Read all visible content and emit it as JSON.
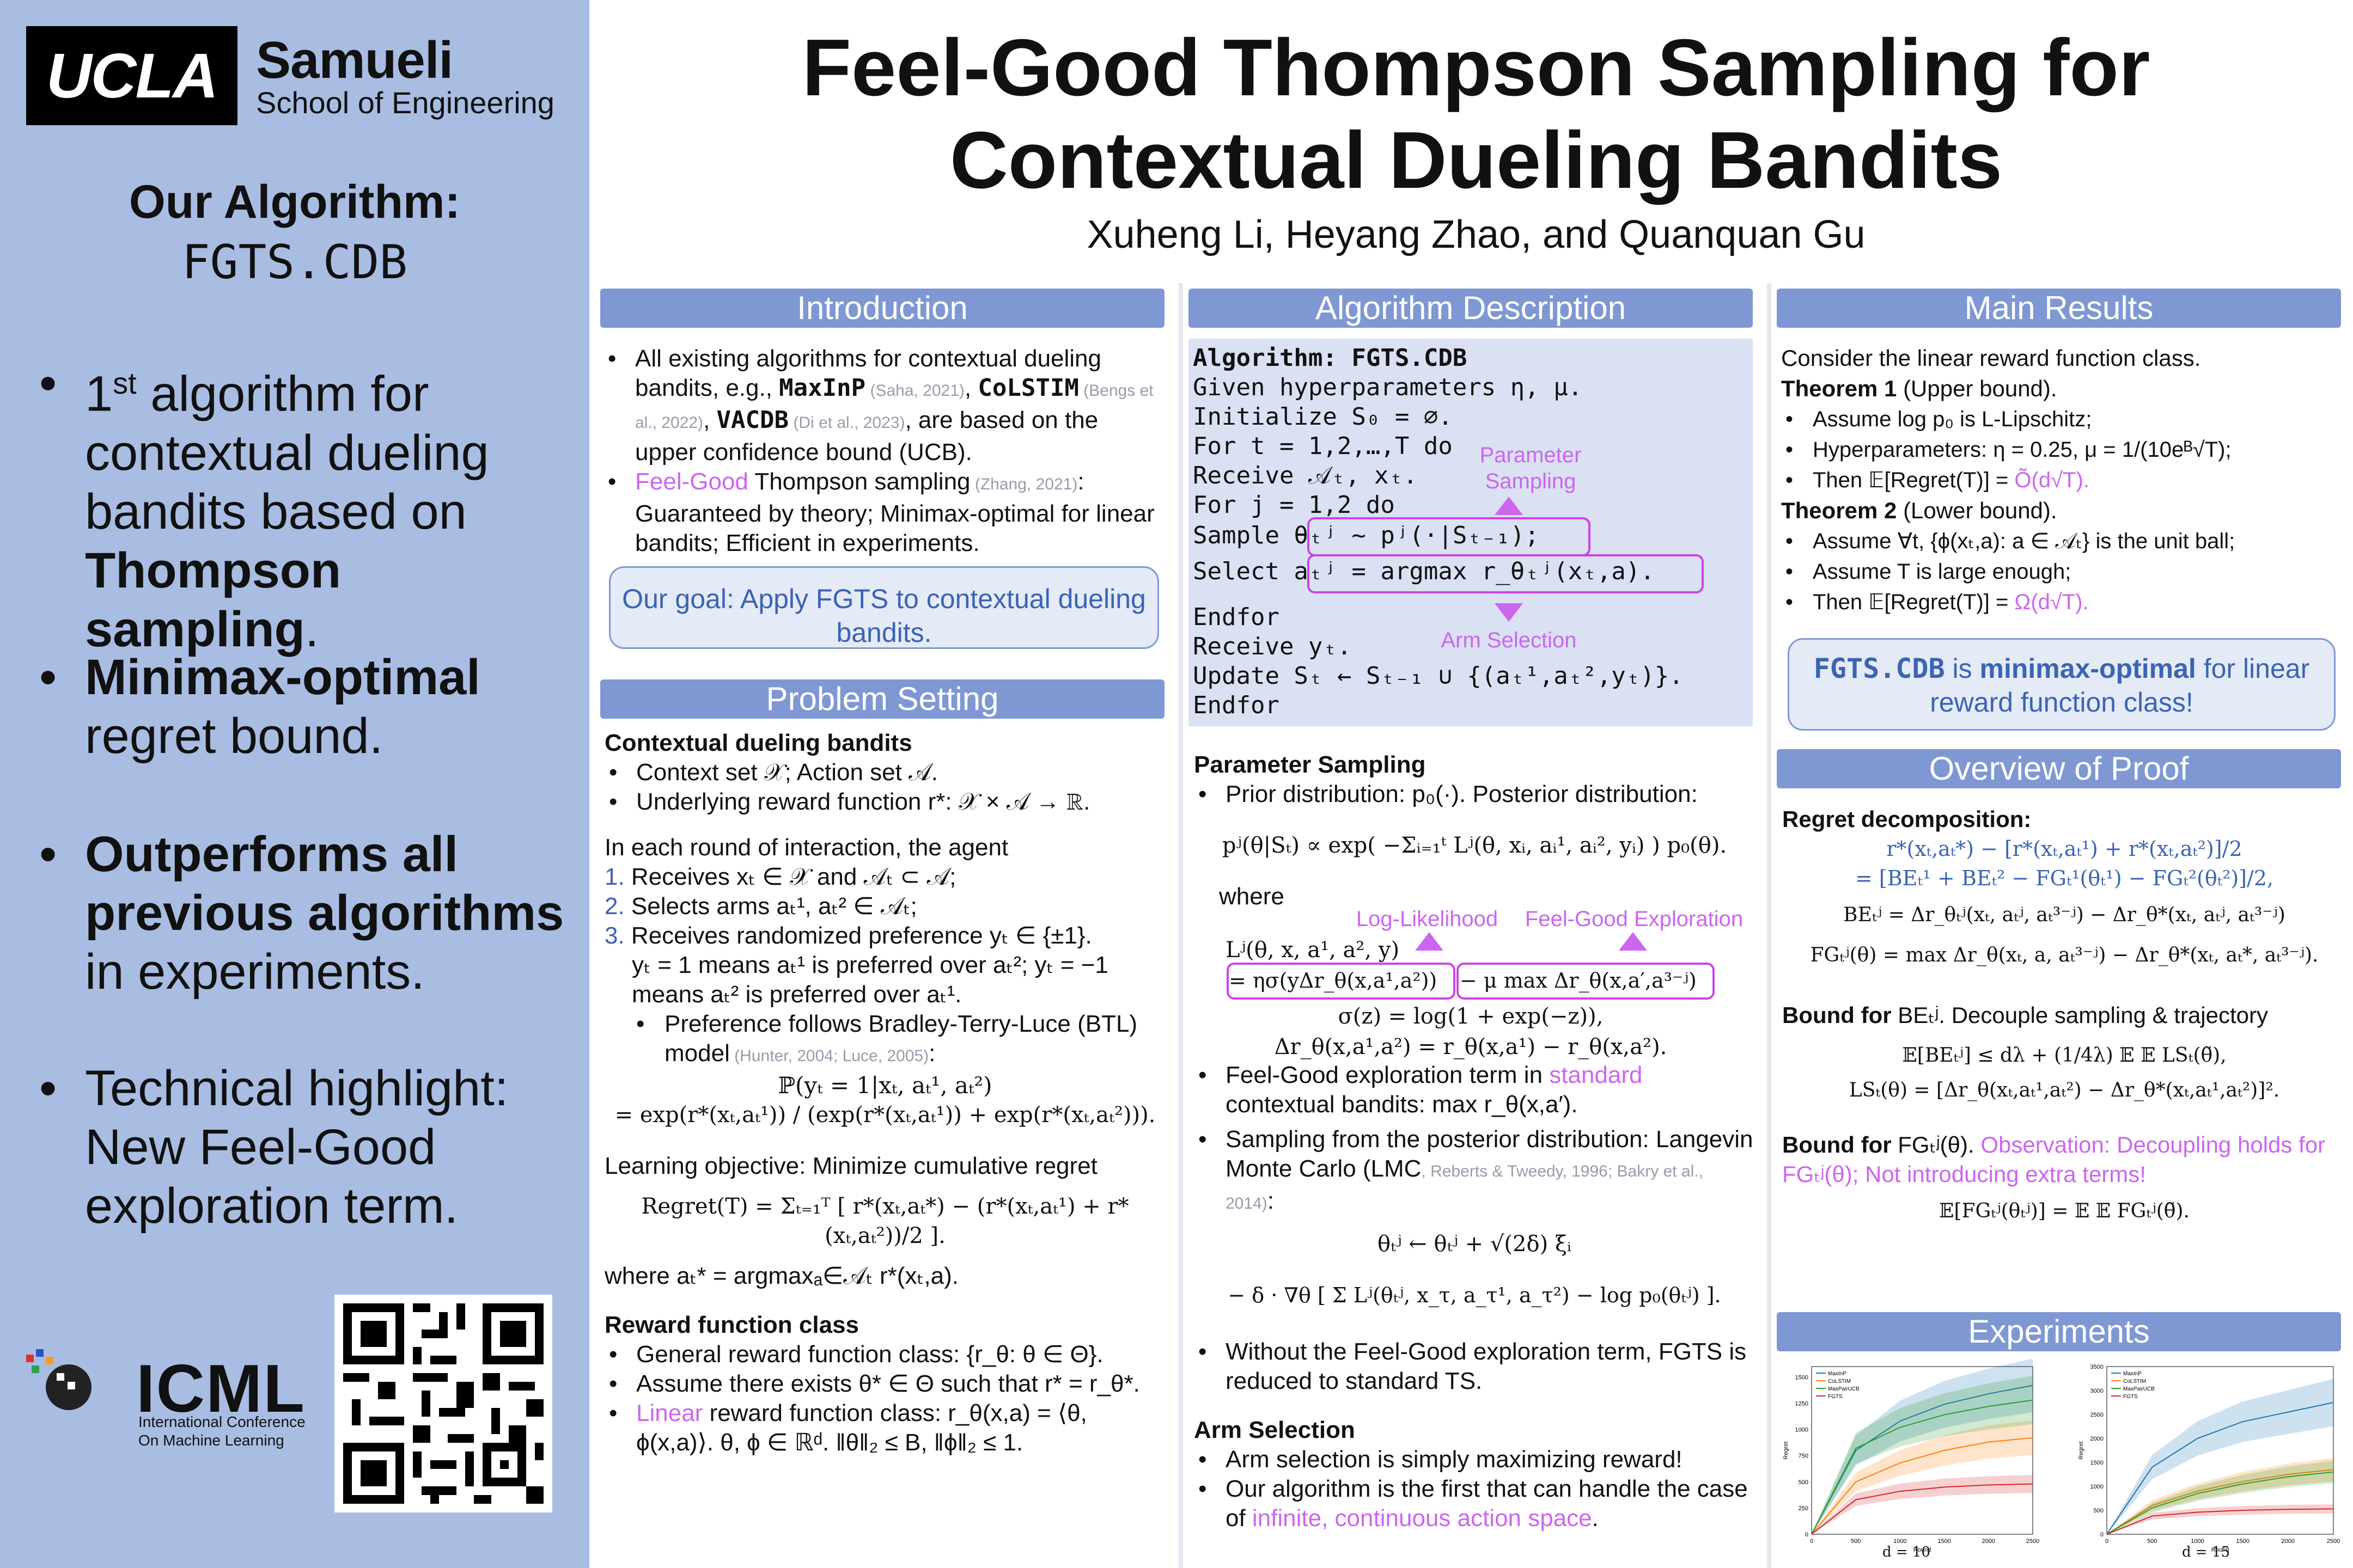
{
  "left_panel": {
    "ucla": "UCLA",
    "samueli": "Samueli",
    "school": "School of Engineering",
    "algo_heading": "Our Algorithm:",
    "algo_name": "FGTS.CDB",
    "highlights": [
      {
        "pre": "1",
        "sup": "st",
        "text1": " algorithm for contextual dueling bandits based on ",
        "bold": "Thompson sampling",
        "post": "."
      },
      {
        "bold": "Minimax-optimal",
        "post": " regret bound."
      },
      {
        "bold": "Outperforms all previous algorithms",
        "post": " in experiments."
      },
      {
        "pre": "Technical highlight: New Feel-Good exploration term."
      }
    ],
    "icml": "ICML",
    "icml_sub1": "International Conference",
    "icml_sub2": "On Machine Learning"
  },
  "title": {
    "line1": "Feel-Good Thompson Sampling for",
    "line2": "Contextual Dueling Bandits",
    "authors": "Xuheng Li, Heyang Zhao, and Quanquan Gu"
  },
  "intro": {
    "heading": "Introduction",
    "b1_a": "All existing algorithms for contextual dueling bandits, e.g., ",
    "b1_m1": "MaxInP",
    "b1_c1": " (Saha, 2021)",
    "b1_m2": "CoLSTIM",
    "b1_c2": " (Bengs et al., 2022)",
    "b1_m3": "VACDB",
    "b1_c3": " (Di et al., 2023)",
    "b1_b": ", are based on the upper confidence bound (UCB).",
    "b2_pink": "Feel-Good",
    "b2_a": " Thompson sampling",
    "b2_c": " (Zhang, 2021)",
    "b2_b": ": Guaranteed by theory; Minimax-optimal for linear bandits; Efficient in experiments.",
    "goal": "Our goal: Apply FGTS to contextual dueling bandits."
  },
  "problem": {
    "heading": "Problem Setting",
    "sub1": "Contextual dueling bandits",
    "p1": "Context set 𝒳; Action set 𝒜.",
    "p2": "Underlying reward function r*: 𝒳 × 𝒜 → ℝ.",
    "round": "In each round of interaction, the agent",
    "s1": "Receives xₜ ∈ 𝒳 and 𝒜ₜ ⊂ 𝒜;",
    "s2": "Selects arms aₜ¹, aₜ² ∈ 𝒜ₜ;",
    "s3a": "Receives randomized preference yₜ ∈ {±1}.",
    "s3b": "yₜ = 1 means aₜ¹ is preferred over aₜ²; yₜ = −1 means aₜ² is preferred over aₜ¹.",
    "btl": "Preference follows Bradley-Terry-Luce (BTL) model",
    "btl_cite": " (Hunter, 2004; Luce, 2005)",
    "btl_eq1": "ℙ(yₜ = 1|xₜ, aₜ¹, aₜ²)",
    "btl_eq2": "= exp(r*(xₜ,aₜ¹)) / (exp(r*(xₜ,aₜ¹)) + exp(r*(xₜ,aₜ²))).",
    "objective": "Learning objective: Minimize cumulative regret",
    "regret_eq": "Regret(T) = Σₜ₌₁ᵀ [ r*(xₜ,aₜ*) − (r*(xₜ,aₜ¹) + r*(xₜ,aₜ²))/2 ].",
    "where": "where aₜ* = argmaxₐ∈𝒜ₜ r*(xₜ,a).",
    "sub2": "Reward function class",
    "r1": "General reward function class: {r_θ: θ ∈ Θ}.",
    "r2": "Assume there exists θ* ∈ Θ such that r* = r_θ*.",
    "r3_pink": "Linear",
    "r3": " reward function class: r_θ(x,a) = ⟨θ, ϕ(x,a)⟩. θ, ϕ ∈ ℝᵈ. ‖θ‖₂ ≤ B, ‖ϕ‖₂ ≤ 1."
  },
  "algorithm": {
    "heading": "Algorithm Description",
    "lines": [
      "Algorithm: FGTS.CDB",
      "Given hyperparameters η, μ.",
      "Initialize S₀ = ∅.",
      "For t = 1,2,…,T do",
      "    Receive 𝒜ₜ, xₜ.",
      "    For j = 1,2 do",
      "       Sample θₜʲ ~ pʲ(·|Sₜ₋₁);",
      "       Select aₜʲ = argmax r_θₜʲ(xₜ,a).",
      "    Endfor",
      "    Receive yₜ.",
      "    Update Sₜ ← Sₜ₋₁ ∪ {(aₜ¹,aₜ²,yₜ)}.",
      "Endfor"
    ],
    "label_param": "Parameter Sampling",
    "label_arm": "Arm Selection",
    "ps_heading": "Parameter Sampling",
    "ps1": "Prior distribution: p₀(·). Posterior distribution:",
    "ps_eq": "pʲ(θ|Sₜ) ∝ exp( −Σᵢ₌₁ᵗ Lʲ(θ, xᵢ, aᵢ¹, aᵢ², yᵢ) ) p₀(θ).",
    "where": "where",
    "label_ll": "Log-Likelihood",
    "label_fg": "Feel-Good Exploration",
    "lj": "Lʲ(θ, x, a¹, a², y)",
    "lj_eq_a": "= ησ(yΔr_θ(x,a¹,a²))",
    "lj_eq_b": "− μ max Δr_θ(x,a′,a³⁻ʲ)",
    "sigma": "σ(z) = log(1 + exp(−z)),",
    "delta": "Δr_θ(x,a¹,a²) = r_θ(x,a¹) − r_θ(x,a²).",
    "fg1a": "Feel-Good exploration term in ",
    "fg1_pink": "standard",
    "fg1b": " contextual bandits: max r_θ(x,a′).",
    "lmc_a": "Sampling from the posterior distribution: Langevin Monte Carlo (LMC",
    "lmc_cite": ", Reberts & Tweedy, 1996; Bakry et al., 2014)",
    "lmc_b": ":",
    "lmc_eq1": "θₜʲ ← θₜʲ + √(2δ) ξᵢ",
    "lmc_eq2": "− δ · ∇θ [ Σ Lʲ(θₜʲ, x_τ, a_τ¹, a_τ²) − log p₀(θₜʲ) ].",
    "without": "Without the Feel-Good exploration term, FGTS is reduced to standard TS.",
    "arm_heading": "Arm Selection",
    "arm1": "Arm selection is simply maximizing reward!",
    "arm2a": "Our algorithm is the first that can handle the case of ",
    "arm2_pink": "infinite, continuous action space",
    "arm2b": "."
  },
  "results": {
    "heading": "Main Results",
    "intro": "Consider the linear reward function class.",
    "t1": "Theorem 1",
    "t1b": " (Upper bound).",
    "t1_1": "Assume log p₀ is L-Lipschitz;",
    "t1_2": "Hyperparameters: η = 0.25, μ = 1/(10eᴮ√T);",
    "t1_3a": "Then 𝔼[Regret(T)] = ",
    "t1_3b": "Õ(d√T).",
    "t2": "Theorem 2",
    "t2b": " (Lower bound).",
    "t2_1": "Assume ∀t, {ϕ(xₜ,a): a ∈ 𝒜ₜ} is the unit ball;",
    "t2_2": "Assume T is large enough;",
    "t2_3a": "Then 𝔼[Regret(T)] = ",
    "t2_3b": "Ω(d√T).",
    "box_a": "FGTS.CDB",
    "box_b": " is ",
    "box_c": "minimax-optimal",
    "box_d": " for linear reward function class!"
  },
  "proof": {
    "heading": "Overview of Proof",
    "rd": "Regret decomposition:",
    "rd1": "r*(xₜ,aₜ*) − [r*(xₜ,aₜ¹) + r*(xₜ,aₜ²)]/2",
    "rd2": "= [BEₜ¹ + BEₜ² − FGₜ¹(θₜ¹) − FGₜ²(θₜ²)]/2,",
    "be": "BEₜʲ = Δr_θₜʲ(xₜ, aₜʲ, aₜ³⁻ʲ) − Δr_θ*(xₜ, aₜʲ, aₜ³⁻ʲ)",
    "fg": "FGₜʲ(θ) = max Δr_θ(xₜ, a, aₜ³⁻ʲ) − Δr_θ*(xₜ, aₜ*, aₜ³⁻ʲ).",
    "bbe_a": "Bound for ",
    "bbe_b": "BEₜʲ",
    "bbe_c": ". Decouple sampling & trajectory",
    "bbe_eq1": "𝔼[BEₜʲ] ≤ dλ + (1/4λ) 𝔼 𝔼 LSₜ(θ̃),",
    "bbe_eq2": "LSₜ(θ) = [Δr_θ(xₜ,aₜ¹,aₜ²) − Δr_θ*(xₜ,aₜ¹,aₜ²)]².",
    "bfg_a": "Bound for ",
    "bfg_b": "FGₜʲ(θ)",
    "bfg_c": ". ",
    "bfg_pink": "Observation: Decoupling holds for FGₜʲ(θ); Not introducing extra terms!",
    "bfg_eq": "𝔼[FGₜʲ(θₜʲ)] = 𝔼 𝔼 FGₜʲ(θ̃)."
  },
  "experiments": {
    "heading": "Experiments",
    "legend": [
      "MaxInP",
      "CoLSTIM",
      "MaxPairUCB",
      "FGTS"
    ],
    "caption_left": "d = 10",
    "caption_right": "d = 15",
    "xlabel": "Round",
    "ylabel": "Regret",
    "series_colors": [
      "#1f77b4",
      "#ff7f0e",
      "#2ca02c",
      "#d62728"
    ]
  },
  "chart_data": [
    {
      "type": "line",
      "title": "",
      "xlabel": "Round",
      "ylabel": "Regret",
      "caption": "d = 10",
      "x": [
        0,
        500,
        1000,
        1500,
        2000,
        2500
      ],
      "xlim": [
        0,
        2500
      ],
      "ylim": [
        0,
        1600
      ],
      "yticks": [
        0,
        250,
        500,
        750,
        1000,
        1250,
        1500
      ],
      "series": [
        {
          "name": "MaxInP",
          "values": [
            0,
            800,
            1080,
            1240,
            1340,
            1420
          ]
        },
        {
          "name": "CoLSTIM",
          "values": [
            0,
            500,
            680,
            800,
            880,
            920
          ]
        },
        {
          "name": "MaxPairUCB",
          "values": [
            0,
            820,
            1020,
            1140,
            1220,
            1280
          ]
        },
        {
          "name": "FGTS",
          "values": [
            0,
            330,
            410,
            450,
            470,
            480
          ]
        }
      ]
    },
    {
      "type": "line",
      "title": "",
      "xlabel": "Round",
      "ylabel": "Regret",
      "caption": "d = 15",
      "x": [
        0,
        500,
        1000,
        1500,
        2000,
        2500
      ],
      "xlim": [
        0,
        2500
      ],
      "ylim": [
        0,
        3500
      ],
      "yticks": [
        0,
        500,
        1000,
        1500,
        2000,
        2500,
        3000,
        3500
      ],
      "series": [
        {
          "name": "MaxInP",
          "values": [
            0,
            1400,
            2000,
            2350,
            2550,
            2750
          ]
        },
        {
          "name": "CoLSTIM",
          "values": [
            0,
            600,
            900,
            1100,
            1250,
            1350
          ]
        },
        {
          "name": "MaxPairUCB",
          "values": [
            0,
            550,
            850,
            1050,
            1200,
            1300
          ]
        },
        {
          "name": "FGTS",
          "values": [
            0,
            380,
            460,
            500,
            520,
            530
          ]
        }
      ]
    }
  ]
}
